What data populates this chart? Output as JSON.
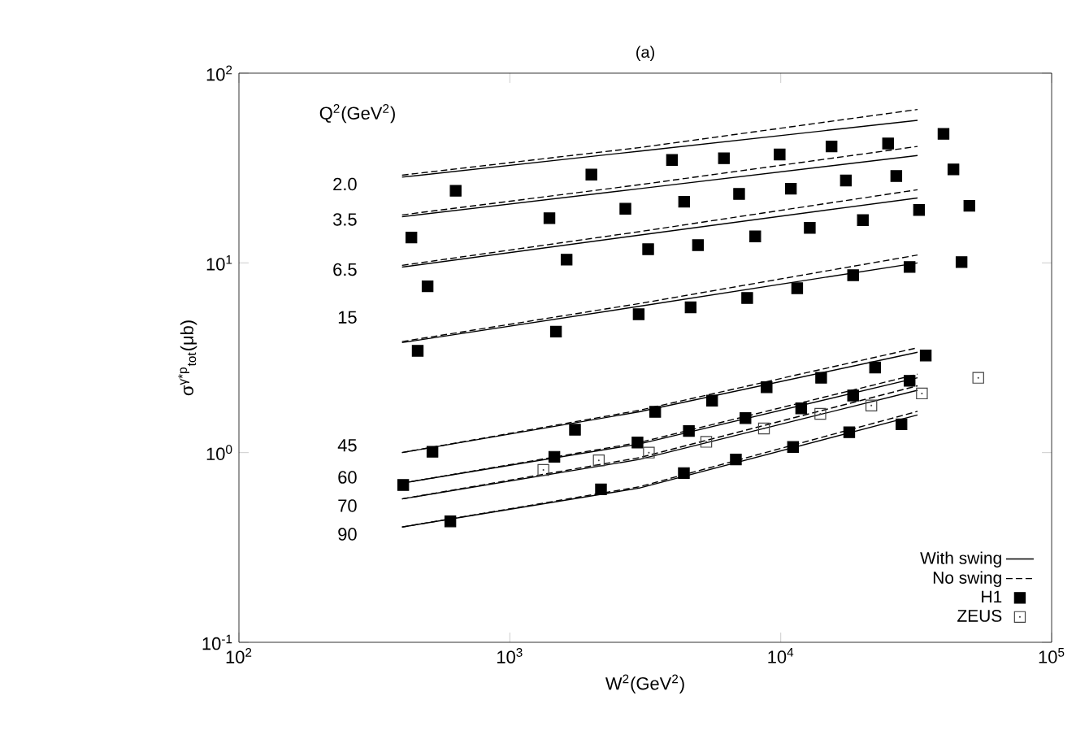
{
  "chart_data": {
    "type": "line",
    "title": "(a)",
    "xlabel": "W$^{2}$(GeV$^{2}$)",
    "ylabel": "σ$^{γ*p}$$_{tot}$(μb)",
    "log": "xy",
    "xlim": [
      100,
      100000
    ],
    "ylim": [
      0.1,
      100
    ],
    "xticks": [
      {
        "value": 100,
        "label": "10$^{2}$"
      },
      {
        "value": 1000,
        "label": "10$^{3}$"
      },
      {
        "value": 10000,
        "label": "10$^{4}$"
      },
      {
        "value": 100000,
        "label": "10$^{5}$"
      }
    ],
    "yticks": [
      {
        "value": 0.1,
        "label": "10$^{-1}$"
      },
      {
        "value": 1,
        "label": "10$^{0}$"
      },
      {
        "value": 10,
        "label": "10$^{1}$"
      },
      {
        "value": 100,
        "label": "10$^{2}$"
      }
    ],
    "legend": "bottom right",
    "annotations": [
      "Q$^{2}$(GeV$^{2}$)",
      "2.0",
      "3.5",
      "6.5",
      "15",
      "45",
      "60",
      "70",
      "90"
    ],
    "series": [
      {
        "name": "With swing",
        "color": "#000000",
        "line_style": "solid",
        "x": [
          400,
          3000,
          32000
        ],
        "values": [
          28.3,
          38.8,
          56.4
        ]
      },
      {
        "name": "No swing",
        "color": "#000000",
        "line_style": "dashed",
        "x": [
          400,
          3000,
          32000
        ],
        "values": [
          29,
          40.5,
          64.4
        ]
      },
      {
        "color": "#000000",
        "line_style": "solid",
        "x": [
          400,
          3000,
          32000
        ],
        "values": [
          17.5,
          24.6,
          36.8
        ]
      },
      {
        "color": "#000000",
        "line_style": "dashed",
        "x": [
          400,
          3000,
          32000
        ],
        "values": [
          17.9,
          25.8,
          41.1
        ]
      },
      {
        "color": "#000000",
        "line_style": "solid",
        "x": [
          400,
          3000,
          32000
        ],
        "values": [
          9.5,
          14.0,
          22.0
        ]
      },
      {
        "color": "#000000",
        "line_style": "dashed",
        "x": [
          400,
          3000,
          32000
        ],
        "values": [
          9.7,
          14.6,
          24.3
        ]
      },
      {
        "color": "#000000",
        "line_style": "solid",
        "x": [
          400,
          3000,
          32000
        ],
        "values": [
          3.8,
          5.9,
          10.0
        ]
      },
      {
        "color": "#000000",
        "line_style": "dashed",
        "x": [
          400,
          3000,
          32000
        ],
        "values": [
          3.85,
          6.1,
          11.0
        ]
      },
      {
        "color": "#000000",
        "line_style": "solid",
        "x": [
          400,
          3000,
          32000
        ],
        "values": [
          1.0,
          1.64,
          3.38
        ]
      },
      {
        "color": "#000000",
        "line_style": "dashed",
        "x": [
          400,
          3000,
          32000
        ],
        "values": [
          1.0,
          1.67,
          3.57
        ]
      },
      {
        "color": "#000000",
        "line_style": "solid",
        "x": [
          400,
          3000,
          32000
        ],
        "values": [
          0.69,
          1.11,
          2.48
        ]
      },
      {
        "color": "#000000",
        "line_style": "dashed",
        "x": [
          400,
          3000,
          32000
        ],
        "values": [
          0.69,
          1.13,
          2.59
        ]
      },
      {
        "color": "#000000",
        "line_style": "solid",
        "x": [
          400,
          3000,
          32000
        ],
        "values": [
          0.57,
          0.92,
          2.13
        ]
      },
      {
        "color": "#000000",
        "line_style": "dashed",
        "x": [
          400,
          3000,
          32000
        ],
        "values": [
          0.57,
          0.94,
          2.25
        ]
      },
      {
        "color": "#000000",
        "line_style": "solid",
        "x": [
          400,
          3000,
          32000
        ],
        "values": [
          0.405,
          0.65,
          1.58
        ]
      },
      {
        "color": "#000000",
        "line_style": "dashed",
        "x": [
          400,
          3000,
          32000
        ],
        "values": [
          0.405,
          0.66,
          1.65
        ]
      },
      {
        "type": "scatter",
        "name": "H1",
        "color": "#000000",
        "marker": "square",
        "x": [
          631,
          2000,
          3970,
          6170,
          9910,
          15400,
          24900,
          39900,
          433,
          1400,
          2670,
          4400,
          7020,
          10900,
          17400,
          26700,
          43400,
          497,
          1620,
          3240,
          4950,
          8050,
          12800,
          20100,
          32400,
          49700,
          457,
          1480,
          2990,
          4650,
          7520,
          11500,
          18500,
          29900,
          46500,
          518,
          404,
          603,
          1460,
          1740,
          2170,
          2960,
          3440,
          4390,
          4580,
          5580,
          6830,
          7410,
          8870,
          11100,
          11900,
          14100,
          17900,
          18500,
          22300,
          34300,
          29900,
          27900
        ],
        "values": [
          24.0,
          29.2,
          34.9,
          35.6,
          37.3,
          41.1,
          42.6,
          47.9,
          13.6,
          17.2,
          19.3,
          21.0,
          23.1,
          24.6,
          27.2,
          28.7,
          31.1,
          7.53,
          10.4,
          11.8,
          12.4,
          13.8,
          15.3,
          16.8,
          19.0,
          20.0,
          3.44,
          4.34,
          5.36,
          5.83,
          6.53,
          7.35,
          8.61,
          9.51,
          10.1,
          1.01,
          0.675,
          0.434,
          0.95,
          1.32,
          0.64,
          1.13,
          1.64,
          0.78,
          1.3,
          1.88,
          0.92,
          1.52,
          2.21,
          1.07,
          1.71,
          2.48,
          1.28,
          2.0,
          2.81,
          3.25,
          2.39,
          1.41
        ]
      },
      {
        "type": "scatter",
        "name": "ZEUS",
        "color": "#444444",
        "marker": "square",
        "x": [
          1330,
          2130,
          3260,
          5310,
          8670,
          14000,
          21600,
          33200,
          53600
        ],
        "values": [
          0.81,
          0.91,
          1.0,
          1.14,
          1.34,
          1.6,
          1.77,
          2.05,
          2.48
        ]
      }
    ]
  }
}
